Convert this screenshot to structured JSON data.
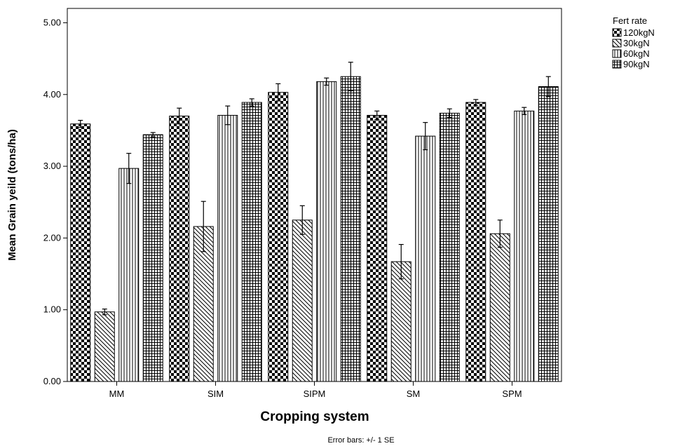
{
  "chart_data": {
    "type": "bar",
    "xlabel": "Cropping system",
    "ylabel": "Mean Grain yeild (tons/ha)",
    "categories": [
      "MM",
      "SIM",
      "SIPM",
      "SM",
      "SPM"
    ],
    "ylim": [
      0,
      5.2
    ],
    "yticks": [
      "0.00",
      "1.00",
      "2.00",
      "3.00",
      "4.00",
      "5.00"
    ],
    "grid": false,
    "legend_title": "Fert rate",
    "legend_position": "top-right",
    "note": "Error bars: +/- 1 SE",
    "series": [
      {
        "name": "120kgN",
        "pattern": "checker",
        "values": [
          3.59,
          3.7,
          4.03,
          3.71,
          3.89
        ],
        "se": [
          0.05,
          0.11,
          0.12,
          0.06,
          0.04
        ]
      },
      {
        "name": "30kgN",
        "pattern": "diagonal",
        "values": [
          0.97,
          2.16,
          2.25,
          1.67,
          2.06
        ],
        "se": [
          0.04,
          0.35,
          0.2,
          0.24,
          0.19
        ]
      },
      {
        "name": "60kgN",
        "pattern": "vertical",
        "values": [
          2.97,
          3.71,
          4.18,
          3.42,
          3.77
        ],
        "se": [
          0.21,
          0.13,
          0.05,
          0.19,
          0.05
        ]
      },
      {
        "name": "90kgN",
        "pattern": "grid",
        "values": [
          3.44,
          3.89,
          4.25,
          3.74,
          4.11
        ],
        "se": [
          0.03,
          0.05,
          0.2,
          0.06,
          0.14
        ]
      }
    ]
  }
}
